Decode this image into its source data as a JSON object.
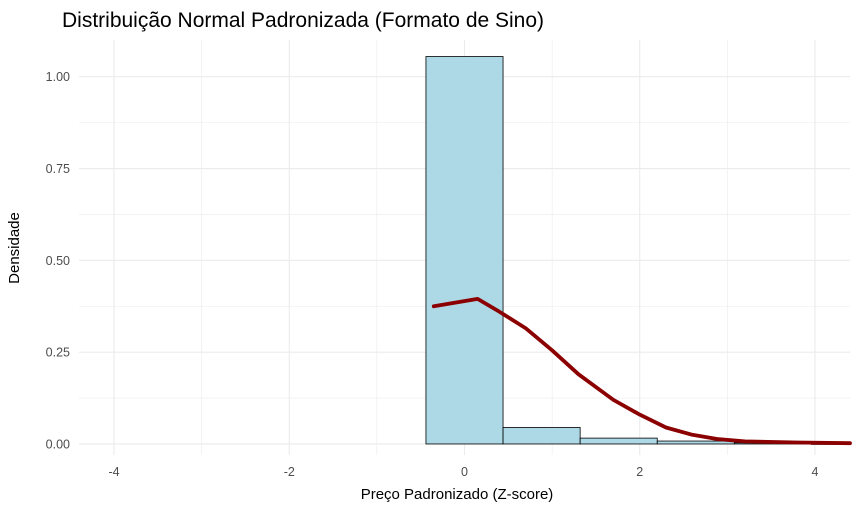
{
  "chart_data": {
    "type": "bar",
    "title": "Distribuição Normal Padronizada (Formato de Sino)",
    "xlabel": "Preço Padronizado (Z-score)",
    "ylabel": "Densidade",
    "xlim": [
      -4.4,
      4.4
    ],
    "ylim": [
      -0.03,
      1.1
    ],
    "x_ticks": [
      -4,
      -2,
      0,
      2,
      4
    ],
    "x_tick_labels": [
      "-4",
      "-2",
      "0",
      "2",
      "4"
    ],
    "y_ticks": [
      0,
      0.25,
      0.5,
      0.75,
      1.0
    ],
    "y_tick_labels": [
      "0.00",
      "0.25",
      "0.50",
      "0.75",
      "1.00"
    ],
    "grid": true,
    "legend": "none",
    "colors": {
      "bar_fill": "#add8e6",
      "bar_border": "#000000",
      "line": "#8b0000",
      "grid": "#ebebeb"
    },
    "histogram": {
      "bins": [
        {
          "x0": -0.44,
          "x1": 0.44,
          "value": 1.055
        },
        {
          "x0": 0.44,
          "x1": 1.32,
          "value": 0.045
        },
        {
          "x0": 1.32,
          "x1": 2.2,
          "value": 0.016
        },
        {
          "x0": 2.2,
          "x1": 3.08,
          "value": 0.008
        },
        {
          "x0": 3.08,
          "x1": 3.96,
          "value": 0.003
        },
        {
          "x0": 3.96,
          "x1": 4.84,
          "value": 0.001
        }
      ]
    },
    "curve": {
      "x": [
        -0.35,
        0.15,
        0.4,
        0.7,
        1.0,
        1.3,
        1.7,
        2.0,
        2.3,
        2.6,
        2.9,
        3.2,
        3.8,
        4.4
      ],
      "y": [
        0.375,
        0.395,
        0.36,
        0.315,
        0.255,
        0.19,
        0.12,
        0.08,
        0.045,
        0.025,
        0.013,
        0.007,
        0.004,
        0.002
      ]
    }
  }
}
